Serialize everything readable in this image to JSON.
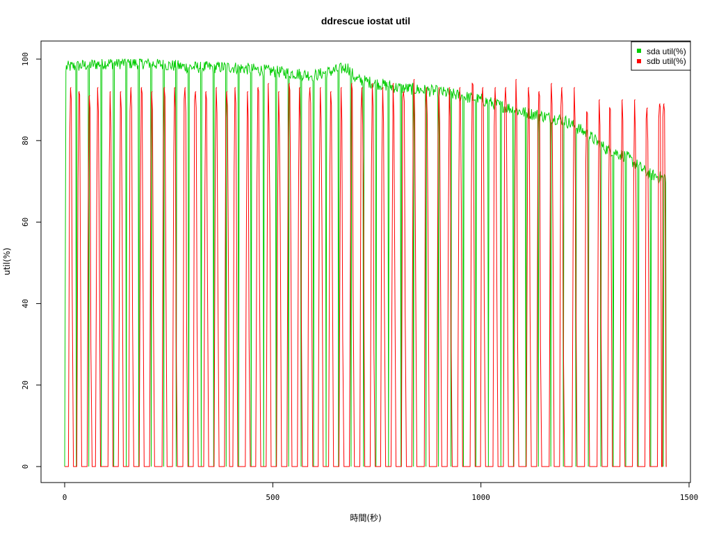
{
  "chart_data": {
    "type": "line",
    "title": "ddrescue iostat util",
    "xlabel": "時間(秒)",
    "ylabel": "util(%)",
    "xlim": [
      0,
      1500
    ],
    "ylim": [
      0,
      100
    ],
    "xticks": [
      0,
      500,
      1000,
      1500
    ],
    "yticks": [
      0,
      20,
      40,
      60,
      80,
      100
    ],
    "grid": false,
    "legend_position": "top-right",
    "series": [
      {
        "name": "sda util(%)",
        "color": "#00cc00",
        "note_trend": "saturated near 99-100 early, gradually decreasing to ~71 by end, with periodic drops to 0",
        "envelope": [
          [
            0,
            98
          ],
          [
            100,
            99
          ],
          [
            200,
            99
          ],
          [
            300,
            98
          ],
          [
            400,
            98
          ],
          [
            500,
            97
          ],
          [
            600,
            96
          ],
          [
            680,
            98
          ],
          [
            700,
            95
          ],
          [
            800,
            93
          ],
          [
            900,
            92
          ],
          [
            1000,
            90
          ],
          [
            1100,
            87
          ],
          [
            1200,
            85
          ],
          [
            1250,
            82
          ],
          [
            1300,
            78
          ],
          [
            1350,
            76
          ],
          [
            1400,
            72
          ],
          [
            1430,
            71
          ]
        ],
        "drops_to_zero_every": 30
      },
      {
        "name": "sdb util(%)",
        "color": "#ff0000",
        "note_trend": "periodic spikes up to ~90-95 alternating with 0",
        "peaks": [
          [
            15,
            93
          ],
          [
            35,
            92
          ],
          [
            60,
            91
          ],
          [
            80,
            93
          ],
          [
            110,
            92
          ],
          [
            135,
            92
          ],
          [
            160,
            93
          ],
          [
            185,
            93
          ],
          [
            210,
            92
          ],
          [
            240,
            93
          ],
          [
            265,
            93
          ],
          [
            290,
            93
          ],
          [
            315,
            92
          ],
          [
            340,
            92
          ],
          [
            365,
            93
          ],
          [
            390,
            92
          ],
          [
            410,
            93
          ],
          [
            440,
            92
          ],
          [
            465,
            93
          ],
          [
            490,
            94
          ],
          [
            515,
            92
          ],
          [
            540,
            94
          ],
          [
            565,
            93
          ],
          [
            590,
            93
          ],
          [
            615,
            93
          ],
          [
            640,
            92
          ],
          [
            665,
            93
          ],
          [
            690,
            94
          ],
          [
            715,
            93
          ],
          [
            740,
            94
          ],
          [
            765,
            93
          ],
          [
            790,
            94
          ],
          [
            815,
            92
          ],
          [
            840,
            95
          ],
          [
            870,
            93
          ],
          [
            900,
            93
          ],
          [
            925,
            93
          ],
          [
            950,
            93
          ],
          [
            980,
            94
          ],
          [
            1005,
            93
          ],
          [
            1035,
            93
          ],
          [
            1060,
            93
          ],
          [
            1085,
            95
          ],
          [
            1115,
            93
          ],
          [
            1140,
            92
          ],
          [
            1170,
            94
          ],
          [
            1195,
            93
          ],
          [
            1225,
            93
          ],
          [
            1255,
            87
          ],
          [
            1285,
            90
          ],
          [
            1310,
            88
          ],
          [
            1340,
            90
          ],
          [
            1370,
            90
          ],
          [
            1400,
            88
          ],
          [
            1430,
            89
          ],
          [
            1440,
            89
          ]
        ]
      }
    ]
  }
}
